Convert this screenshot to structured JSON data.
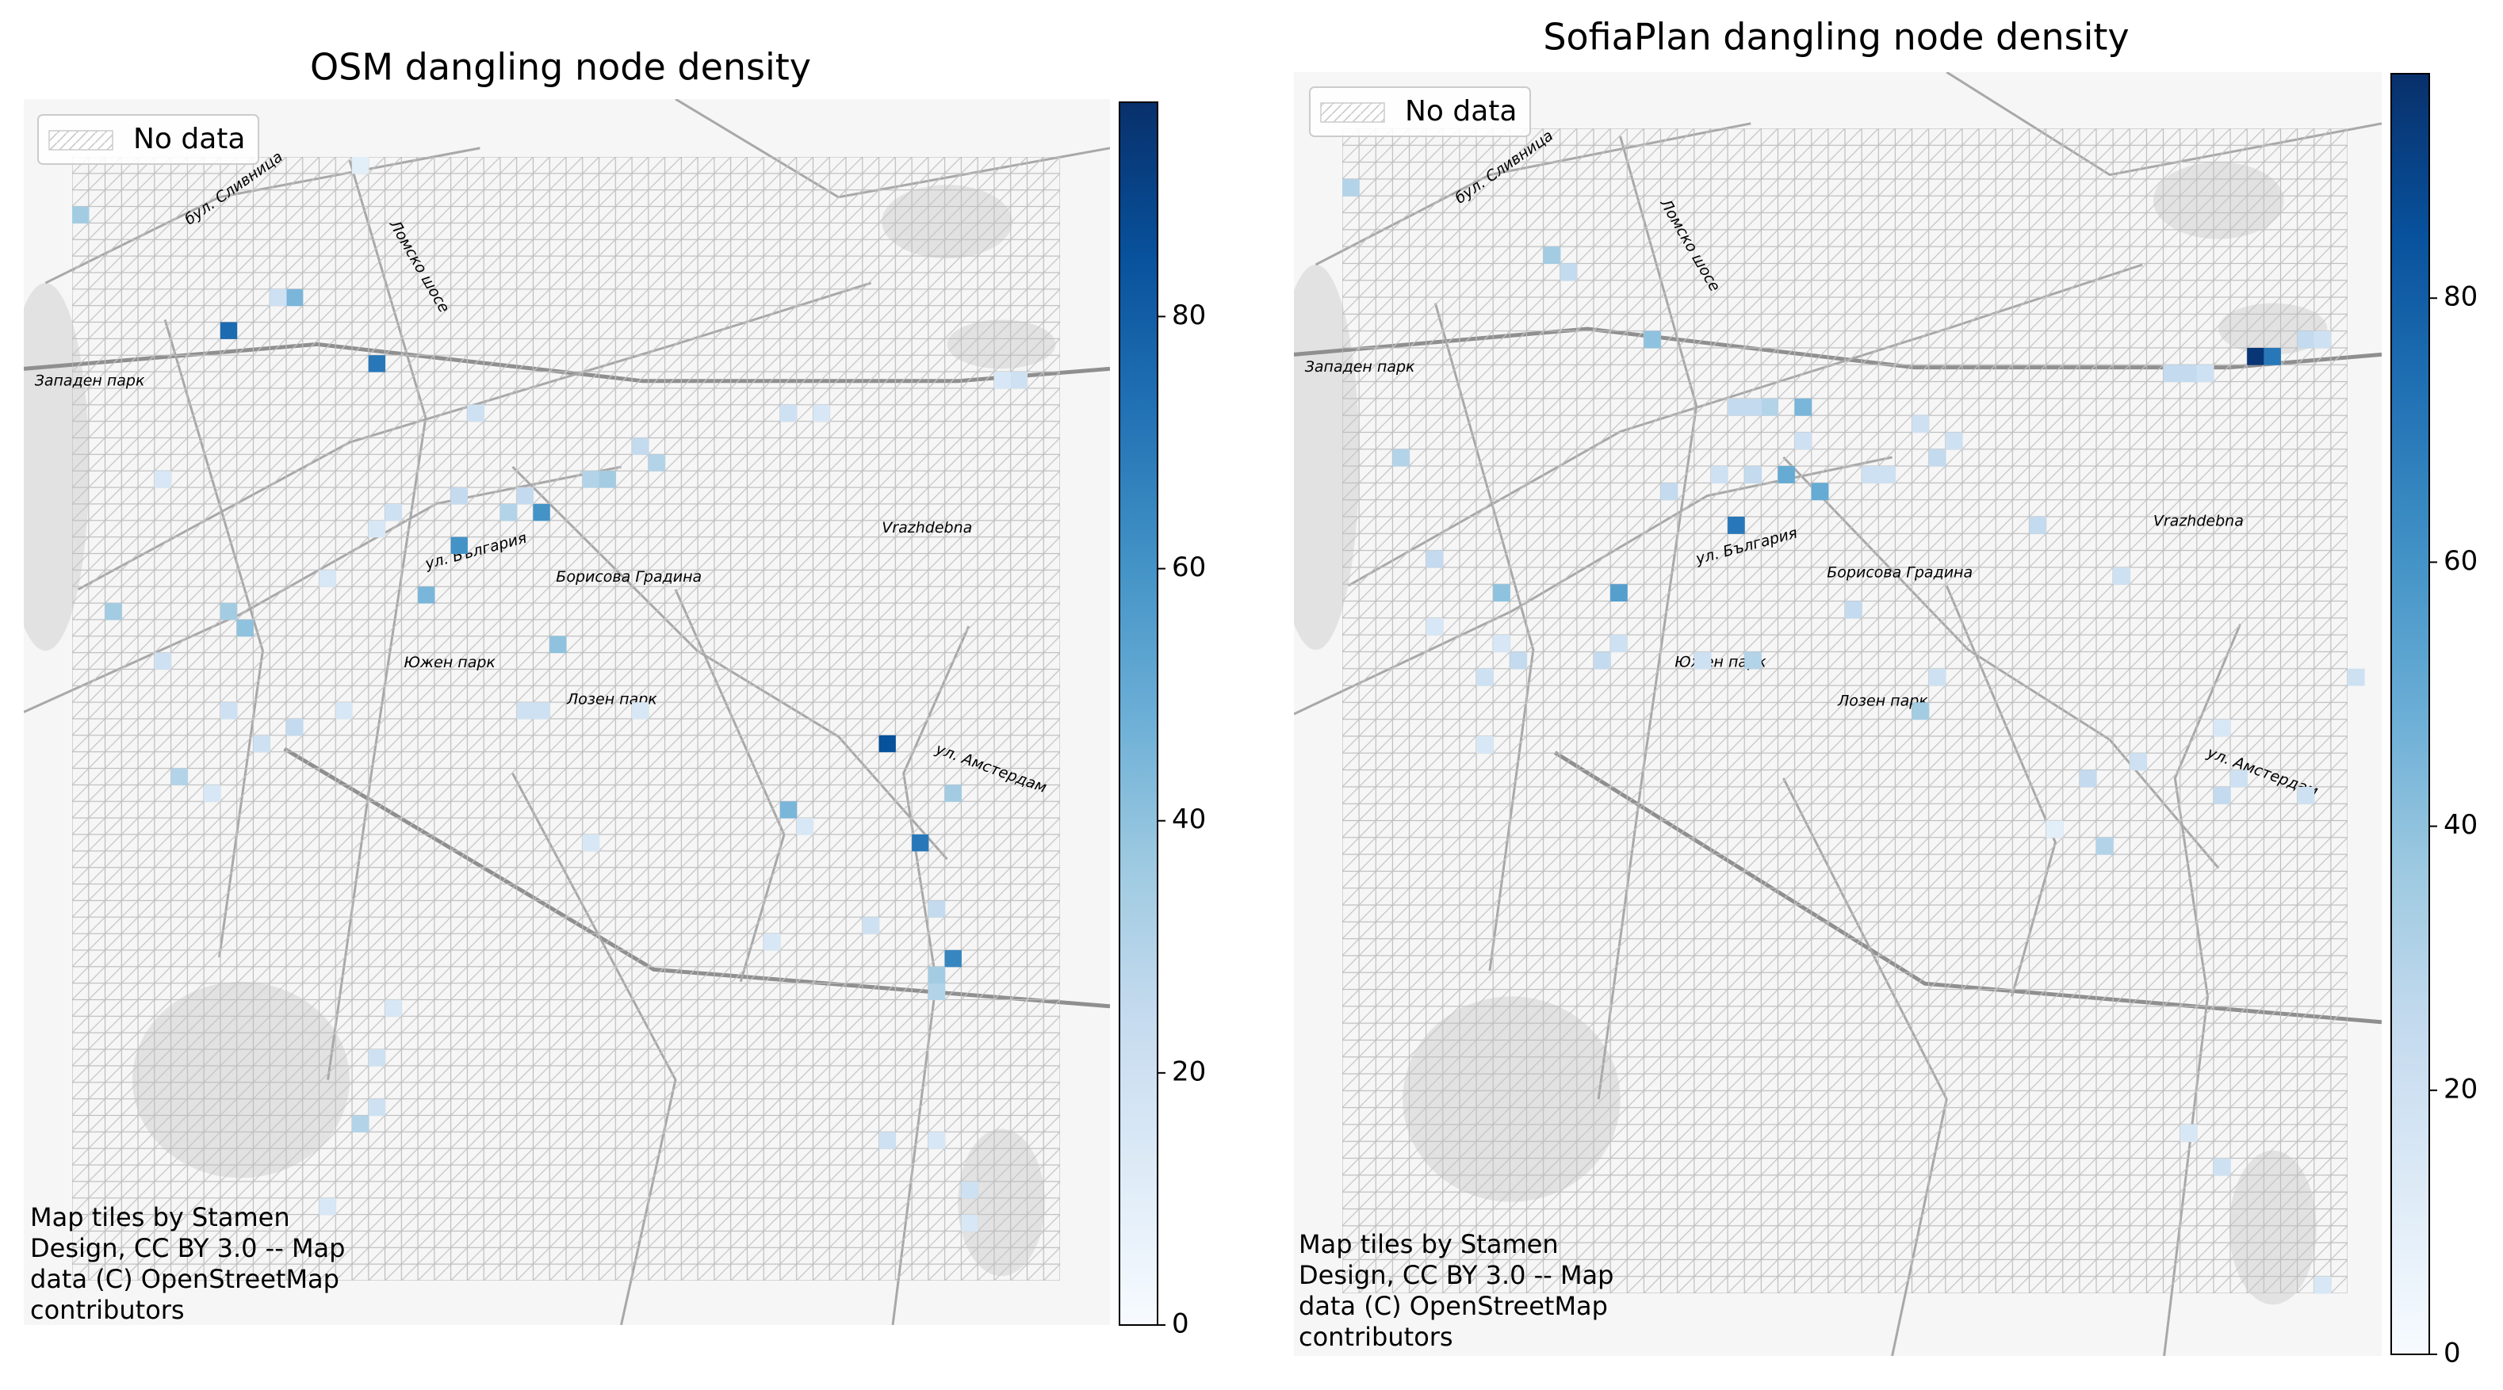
{
  "chart_data": [
    {
      "type": "heatmap",
      "title": "OSM dangling node density",
      "legend_label": "No data",
      "grid_size": [
        60,
        68
      ],
      "cells": {
        "x": [
          9,
          18,
          49,
          51,
          23,
          28,
          13,
          12,
          0,
          53,
          21,
          29,
          9,
          2,
          10,
          43,
          53,
          6,
          13,
          9,
          16,
          24,
          26,
          27,
          31,
          32,
          34,
          35,
          23,
          19,
          18,
          15,
          5,
          17,
          56,
          57,
          43,
          45,
          44,
          27,
          28,
          34,
          31,
          48,
          52,
          52,
          52,
          19,
          18,
          17,
          18,
          15,
          42,
          49,
          52,
          54,
          54,
          8,
          5,
          11
        ],
        "y": [
          10,
          12,
          35,
          41,
          23,
          21,
          8,
          8,
          3,
          48,
          26,
          29,
          27,
          27,
          28,
          39,
          38,
          37,
          34,
          33,
          33,
          15,
          21,
          20,
          19,
          19,
          17,
          18,
          20,
          21,
          22,
          25,
          19,
          0,
          13,
          13,
          15,
          15,
          40,
          33,
          33,
          33,
          41,
          46,
          45,
          50,
          49,
          51,
          54,
          58,
          57,
          63,
          47,
          59,
          59,
          64,
          62,
          38,
          30,
          35
        ],
        "values": [
          75,
          70,
          85,
          70,
          60,
          60,
          45,
          20,
          35,
          65,
          45,
          40,
          35,
          35,
          40,
          45,
          35,
          30,
          25,
          20,
          15,
          20,
          30,
          25,
          30,
          35,
          25,
          30,
          25,
          20,
          15,
          15,
          15,
          10,
          15,
          20,
          20,
          15,
          15,
          20,
          20,
          15,
          15,
          20,
          25,
          30,
          35,
          15,
          20,
          30,
          20,
          15,
          15,
          20,
          15,
          15,
          20,
          15,
          20,
          20
        ]
      },
      "clim": [
        0,
        97
      ],
      "colorbar_ticks": [
        0,
        20,
        40,
        60,
        80
      ],
      "colormap": [
        "#f7fbff",
        "#deebf7",
        "#c6dbef",
        "#9ecae1",
        "#6baed6",
        "#4292c6",
        "#2171b5",
        "#08519c",
        "#08306b"
      ],
      "map_labels": [
        "бул. Сливница",
        "Ломско шосе",
        "Западен парк",
        "Vrazhdebna",
        "ул. България",
        "Борисова Градина",
        "Южен парк",
        "Лозен парк",
        "ул. Амстердам"
      ],
      "attribution": [
        "Map tiles by Stamen",
        "Design, CC BY 3.0 -- Map",
        "data (C) OpenStreetMap",
        "contributors"
      ]
    },
    {
      "type": "heatmap",
      "title": "SofiaPlan dangling node density",
      "legend_label": "No data",
      "grid_size": [
        60,
        69
      ],
      "cells": {
        "x": [
          54,
          55,
          23,
          16,
          26,
          28,
          27,
          9,
          18,
          12,
          13,
          0,
          3,
          5,
          25,
          24,
          23,
          27,
          24,
          22,
          19,
          31,
          32,
          36,
          35,
          34,
          41,
          30,
          24,
          21,
          16,
          15,
          10,
          8,
          5,
          9,
          35,
          34,
          46,
          49,
          50,
          51,
          57,
          58,
          60,
          57,
          44,
          45,
          52,
          52,
          53,
          8,
          47,
          50,
          52,
          58,
          42
        ],
        "y": [
          13,
          13,
          23,
          27,
          20,
          21,
          16,
          27,
          12,
          7,
          8,
          3,
          19,
          25,
          16,
          16,
          16,
          18,
          20,
          20,
          21,
          20,
          20,
          18,
          19,
          17,
          23,
          28,
          31,
          31,
          30,
          31,
          31,
          32,
          29,
          30,
          32,
          34,
          26,
          14,
          14,
          14,
          12,
          12,
          32,
          39,
          38,
          42,
          35,
          39,
          38,
          36,
          37,
          59,
          61,
          68,
          41
        ],
        "values": [
          95,
          70,
          70,
          55,
          50,
          50,
          45,
          40,
          40,
          35,
          25,
          30,
          30,
          25,
          30,
          25,
          25,
          20,
          25,
          20,
          25,
          20,
          20,
          20,
          25,
          20,
          25,
          25,
          30,
          20,
          20,
          25,
          25,
          20,
          15,
          15,
          20,
          35,
          20,
          25,
          25,
          20,
          25,
          20,
          20,
          20,
          25,
          30,
          15,
          25,
          20,
          15,
          20,
          15,
          20,
          15,
          10
        ]
      },
      "clim": [
        0,
        97
      ],
      "colorbar_ticks": [
        0,
        20,
        40,
        60,
        80
      ],
      "colormap": [
        "#f7fbff",
        "#deebf7",
        "#c6dbef",
        "#9ecae1",
        "#6baed6",
        "#4292c6",
        "#2171b5",
        "#08519c",
        "#08306b"
      ],
      "map_labels": [
        "бул. Сливница",
        "Ломско шосе",
        "Западен парк",
        "Vrazhdebna",
        "ул. България",
        "Борисова Градина",
        "Южен парк",
        "Лозен парк",
        "ул. Амстердам"
      ],
      "attribution": [
        "Map tiles by Stamen",
        "Design, CC BY 3.0 -- Map",
        "data (C) OpenStreetMap",
        "contributors"
      ]
    }
  ]
}
